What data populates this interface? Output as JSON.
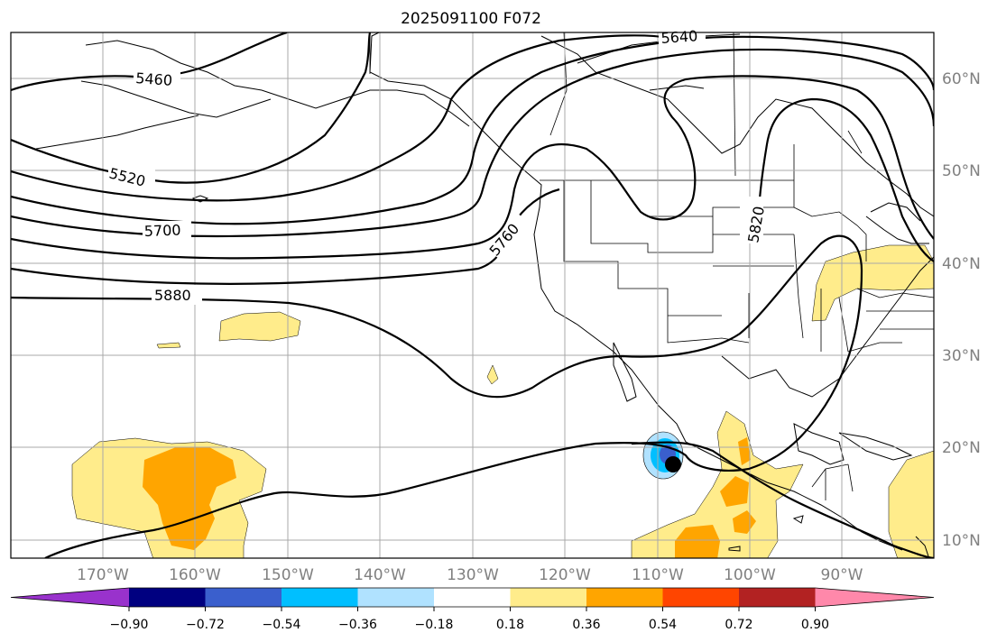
{
  "title": "2025091100 F072",
  "lon_labels": [
    "170°W",
    "160°W",
    "150°W",
    "140°W",
    "130°W",
    "120°W",
    "110°W",
    "100°W",
    "90°W"
  ],
  "lat_labels": [
    "60°N",
    "50°N",
    "40°N",
    "30°N",
    "20°N",
    "10°N"
  ],
  "contour_labels": [
    "5460",
    "5520",
    "5640",
    "5700",
    "5760",
    "5820",
    "5880"
  ],
  "colorbar": {
    "ticks": [
      "−0.90",
      "−0.72",
      "−0.54",
      "−0.36",
      "−0.18",
      "0.18",
      "0.36",
      "0.54",
      "0.72",
      "0.90"
    ],
    "colors": [
      "#9932cc",
      "#000080",
      "#3a5fcd",
      "#00bfff",
      "#b0e2ff",
      "#ffffff",
      "#ffec8b",
      "#ffa500",
      "#ff4500",
      "#b22222",
      "#ff88aa"
    ]
  },
  "marker_color": "#000000"
}
